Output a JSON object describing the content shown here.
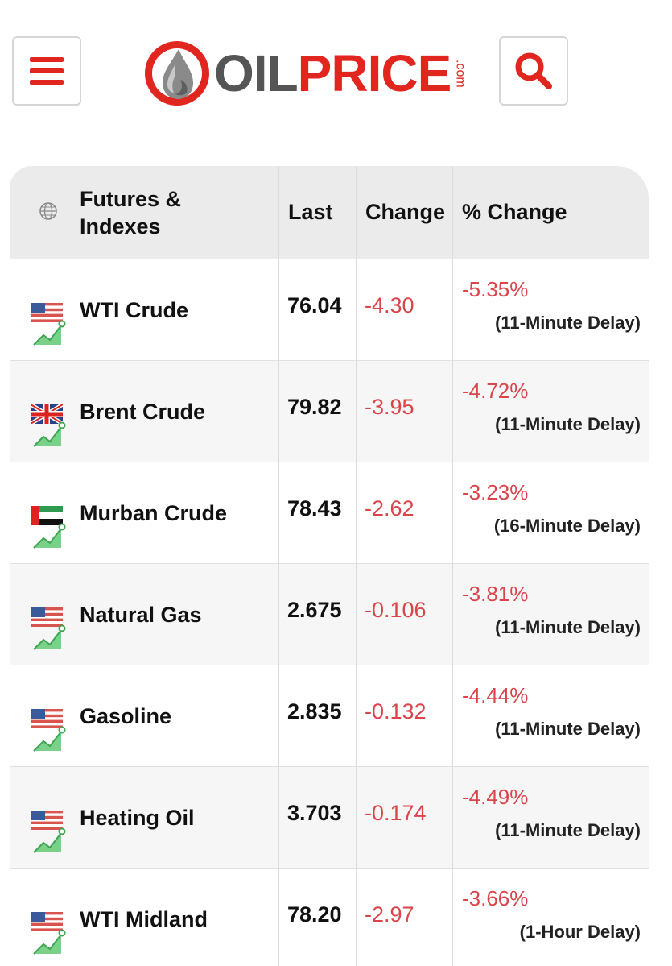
{
  "header": {
    "logo_oil": "OIL",
    "logo_price": "PRICE",
    "logo_com": ".com"
  },
  "table": {
    "headers": {
      "name_line1": "Futures &",
      "name_line2": "Indexes",
      "last": "Last",
      "change": "Change",
      "pct_change": "% Change"
    },
    "rows": [
      {
        "name": "WTI Crude",
        "flag": "us-flag",
        "last": "76.04",
        "change": "-4.30",
        "pct_change": "-5.35%",
        "delay": "(11-Minute Delay)"
      },
      {
        "name": "Brent Crude",
        "flag": "uk-flag",
        "last": "79.82",
        "change": "-3.95",
        "pct_change": "-4.72%",
        "delay": "(11-Minute Delay)"
      },
      {
        "name": "Murban Crude",
        "flag": "uae-flag",
        "last": "78.43",
        "change": "-2.62",
        "pct_change": "-3.23%",
        "delay": "(16-Minute Delay)"
      },
      {
        "name": "Natural Gas",
        "flag": "us-flag",
        "last": "2.675",
        "change": "-0.106",
        "pct_change": "-3.81%",
        "delay": "(11-Minute Delay)"
      },
      {
        "name": "Gasoline",
        "flag": "us-flag",
        "last": "2.835",
        "change": "-0.132",
        "pct_change": "-4.44%",
        "delay": "(11-Minute Delay)"
      },
      {
        "name": "Heating Oil",
        "flag": "us-flag",
        "last": "3.703",
        "change": "-0.174",
        "pct_change": "-4.49%",
        "delay": "(11-Minute Delay)"
      },
      {
        "name": "WTI Midland",
        "flag": "us-flag",
        "last": "78.20",
        "change": "-2.97",
        "pct_change": "-3.66%",
        "delay": "(1-Hour Delay)"
      }
    ]
  },
  "colors": {
    "brand_red": "#e0261f",
    "negative": "#d9454a",
    "header_bg": "#ebebeb",
    "trend_green": "#7bd08a"
  }
}
